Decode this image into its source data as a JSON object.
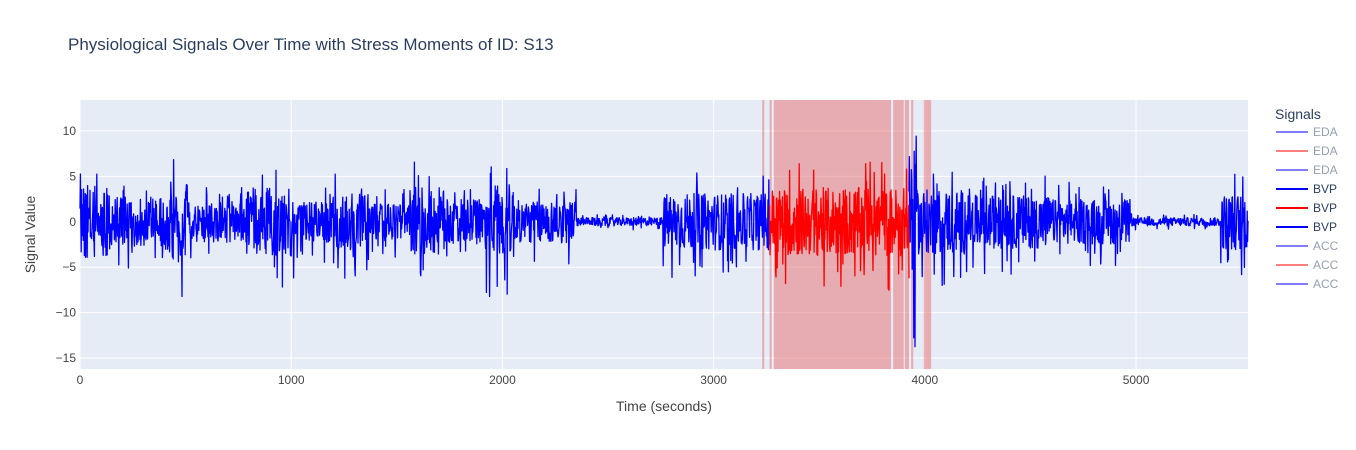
{
  "chart_data": {
    "type": "line",
    "title": "Physiological Signals Over Time with Stress Moments of ID: S13",
    "xlabel": "Time (seconds)",
    "ylabel": "Signal Value",
    "xlim": [
      0,
      5530
    ],
    "ylim": [
      -16.2,
      13.4
    ],
    "x_ticks": [
      0,
      1000,
      2000,
      3000,
      4000,
      5000
    ],
    "x_tick_labels": [
      "0",
      "1000",
      "2000",
      "3000",
      "4000",
      "5000"
    ],
    "y_ticks": [
      10,
      5,
      0,
      -5,
      -10,
      -15
    ],
    "y_tick_labels": [
      "10",
      "5",
      "0",
      "−5",
      "−10",
      "−15"
    ],
    "grid": true,
    "legend": {
      "title": "Signals",
      "placement": "right",
      "items": [
        {
          "name": "EDA",
          "color": "#0000ff",
          "faded": true
        },
        {
          "name": "EDA",
          "color": "#ff0000",
          "faded": true
        },
        {
          "name": "EDA",
          "color": "#0000ff",
          "faded": true
        },
        {
          "name": "BVP",
          "color": "#0000ff",
          "faded": false
        },
        {
          "name": "BVP",
          "color": "#ff0000",
          "faded": false
        },
        {
          "name": "BVP",
          "color": "#0000ff",
          "faded": false
        },
        {
          "name": "ACC",
          "color": "#0000ff",
          "faded": true
        },
        {
          "name": "ACC",
          "color": "#ff0000",
          "faded": true
        },
        {
          "name": "ACC",
          "color": "#0000ff",
          "faded": true
        }
      ]
    },
    "series": [
      {
        "name": "BVP",
        "color": "#0000ff",
        "x_range": [
          0,
          3265
        ]
      },
      {
        "name": "BVP",
        "color": "#ff0000",
        "x_range": [
          3265,
          3925
        ]
      },
      {
        "name": "BVP",
        "color": "#0000ff",
        "x_range": [
          3925,
          5530
        ]
      }
    ],
    "bursts": [
      {
        "x": [
          0,
          150
        ],
        "amplitude": 6.2
      },
      {
        "x": [
          150,
          400
        ],
        "amplitude": 4.2
      },
      {
        "x": [
          400,
          510
        ],
        "amplitude": 6.8
      },
      {
        "x": [
          510,
          780
        ],
        "amplitude": 3.5
      },
      {
        "x": [
          780,
          1020
        ],
        "amplitude": 5.8
      },
      {
        "x": [
          1020,
          1200
        ],
        "amplitude": 3.5
      },
      {
        "x": [
          1200,
          1360
        ],
        "amplitude": 4.8
      },
      {
        "x": [
          1360,
          1560
        ],
        "amplitude": 3.2
      },
      {
        "x": [
          1560,
          1730
        ],
        "amplitude": 5.8
      },
      {
        "x": [
          1730,
          1920
        ],
        "amplitude": 3.8
      },
      {
        "x": [
          1920,
          2060
        ],
        "amplitude": 6.5
      },
      {
        "x": [
          2060,
          2350
        ],
        "amplitude": 3.6
      },
      {
        "x": [
          2350,
          2760
        ],
        "amplitude": 0.7
      },
      {
        "x": [
          2760,
          3265
        ],
        "amplitude": 4.8
      },
      {
        "x": [
          3265,
          3925
        ],
        "amplitude": 5.8
      },
      {
        "x": [
          3925,
          3960
        ],
        "amplitude": 12.0
      },
      {
        "x": [
          3960,
          4200
        ],
        "amplitude": 5.5
      },
      {
        "x": [
          4200,
          4600
        ],
        "amplitude": 4.5
      },
      {
        "x": [
          4600,
          4980
        ],
        "amplitude": 3.8
      },
      {
        "x": [
          4980,
          5400
        ],
        "amplitude": 0.7
      },
      {
        "x": [
          5400,
          5530
        ],
        "amplitude": 4.8
      }
    ],
    "stress_moments": {
      "color": "#e88285",
      "intervals": [
        [
          3230,
          3240
        ],
        [
          3265,
          3275
        ],
        [
          3285,
          3840
        ],
        [
          3850,
          3900
        ],
        [
          3905,
          3925
        ],
        [
          3935,
          3945
        ],
        [
          3995,
          4030
        ]
      ]
    }
  }
}
